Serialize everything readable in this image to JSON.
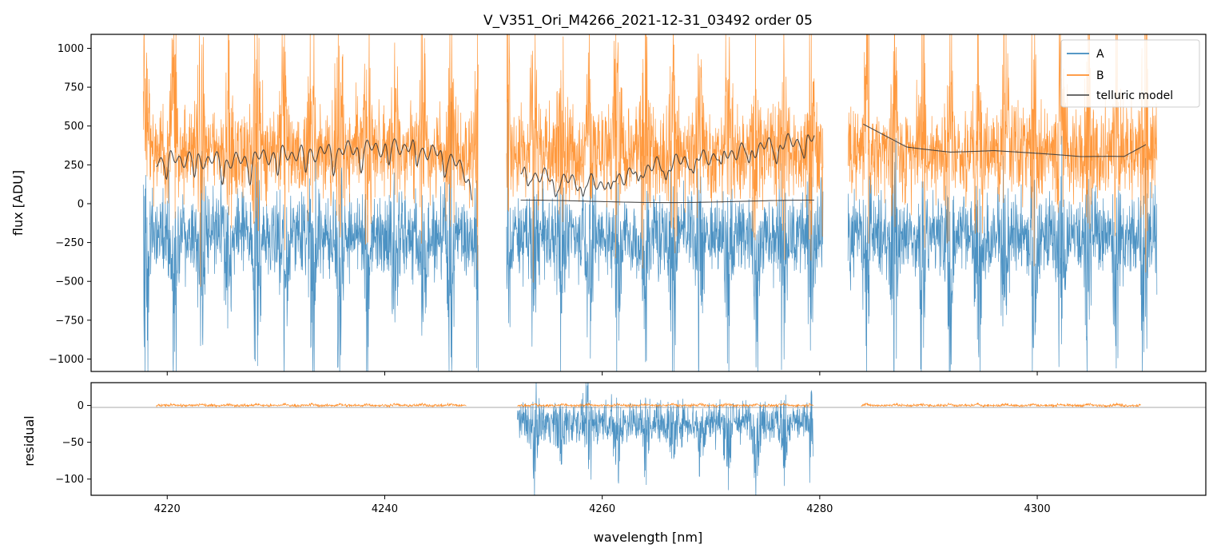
{
  "chart_data": [
    {
      "type": "line",
      "title": "V_V351_Ori_M4266_2021-12-31_03492  order 05",
      "xlabel": "",
      "ylabel": "flux [ADU]",
      "xlim": [
        4213.0,
        4315.5
      ],
      "ylim": [
        -1080,
        1090
      ],
      "yticks": [
        1000,
        750,
        500,
        250,
        0,
        -250,
        -500,
        -750,
        -1000
      ],
      "ytick_labels": [
        "1000",
        "750",
        "500",
        "250",
        "0",
        "−250",
        "−500",
        "−750",
        "−1000"
      ],
      "xticks": [
        4220,
        4240,
        4260,
        4280,
        4300
      ],
      "segments_nm": [
        [
          4217.8,
          4248.6
        ],
        [
          4251.2,
          4280.3
        ],
        [
          4282.6,
          4311.0
        ]
      ],
      "legend": {
        "placement": "upper-right",
        "entries": [
          "A",
          "B",
          "telluric model"
        ]
      },
      "series": [
        {
          "name": "A",
          "color": "#1f77b4",
          "description": "noisy spectrum, roughly −1000 to 350 ADU"
        },
        {
          "name": "B",
          "color": "#ff7f0e",
          "description": "noisy spectrum, roughly −400 to 1090 ADU"
        },
        {
          "name": "telluric model",
          "color": "#3a3a3a",
          "x": [
            4219,
            4222,
            4226,
            4230,
            4234,
            4238,
            4242,
            4246,
            4248,
            4252.5,
            4256,
            4260,
            4264,
            4268,
            4272,
            4276,
            4279.5,
            4284,
            4288,
            4292,
            4296,
            4300,
            4304,
            4308,
            4310
          ],
          "y": [
            285,
            290,
            270,
            315,
            330,
            355,
            370,
            300,
            140,
            210,
            150,
            130,
            230,
            280,
            330,
            380,
            415,
            510,
            370,
            340,
            345,
            320,
            295,
            300,
            380
          ]
        }
      ]
    },
    {
      "type": "line",
      "title": "",
      "xlabel": "wavelength [nm]",
      "ylabel": "residual",
      "xlim": [
        4213.0,
        4315.5
      ],
      "ylim": [
        -122,
        31
      ],
      "yticks": [
        0,
        -50,
        -100
      ],
      "ytick_labels": [
        "0",
        "−50",
        "−100"
      ],
      "xticks": [
        4220,
        4240,
        4260,
        4280,
        4300
      ],
      "xtick_labels": [
        "4220",
        "4240",
        "4260",
        "4280",
        "4300"
      ],
      "series": [
        {
          "name": "A",
          "color": "#1f77b4",
          "x_range": [
            4252.2,
            4279.4
          ],
          "description": "residuals between about −120 and 30"
        },
        {
          "name": "B",
          "color": "#ff7f0e",
          "x_ranges": [
            [
              4219.0,
              4247.5
            ],
            [
              4252.2,
              4279.4
            ],
            [
              4283.8,
              4309.5
            ]
          ],
          "description": "residuals near 0"
        }
      ]
    }
  ]
}
